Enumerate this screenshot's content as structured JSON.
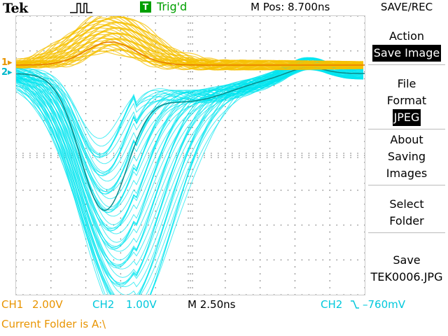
{
  "header": {
    "brand": "Tek",
    "trigger_icon_letter": "T",
    "trigger_status": "Trig'd",
    "m_pos_label": "M Pos: 8.700ns"
  },
  "side_menu": {
    "title": "SAVE/REC",
    "items": [
      {
        "label_lines": [
          "Action"
        ],
        "value": "Save Image"
      },
      {
        "label_lines": [
          "File",
          "Format"
        ],
        "value": "JPEG"
      },
      {
        "label_lines": [
          "About",
          "Saving",
          "Images"
        ],
        "value": ""
      },
      {
        "label_lines": [
          "Select",
          "Folder"
        ],
        "value": ""
      },
      {
        "label_lines": [
          "Save"
        ],
        "value": "TEK0006.JPG"
      }
    ]
  },
  "status": {
    "ch1": "CH1",
    "ch1_scale": "2.00V",
    "ch2": "CH2",
    "ch2_scale": "1.00V",
    "timebase": "M 2.50ns",
    "trigger_source": "CH2",
    "trigger_slope_icon": "falling-edge",
    "trigger_level": "–760mV",
    "current_folder": "Current Folder is A:\\"
  },
  "channel_markers": {
    "ch1": "1",
    "ch2": "2"
  },
  "colors": {
    "ch1": "#f5c000",
    "ch1_avg": "#e87a00",
    "ch2": "#00e5f0",
    "ch2_avg": "#0a8a8a",
    "grid": "#777777",
    "trig": "#00a000"
  }
}
